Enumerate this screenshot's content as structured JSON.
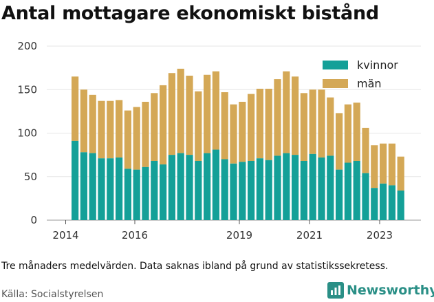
{
  "title": "Antal mottagare ekonomiskt bistånd",
  "note": "Tre månaders medelvärden. Data saknas ibland på grund av statistikssekretess.",
  "source": "Källa: Socialstyrelsen",
  "brand": {
    "name": "Newsworthy",
    "icon": "bar-chart-icon",
    "color": "#2a8f86"
  },
  "chart_data": {
    "type": "bar",
    "stacked": true,
    "ylim": [
      0,
      200
    ],
    "yticks": [
      0,
      50,
      100,
      150,
      200
    ],
    "xticks": [
      "2014",
      "2016",
      "2019",
      "2021",
      "2023"
    ],
    "grid": true,
    "legend_position": "top-right",
    "series": [
      {
        "name": "kvinnor",
        "color": "#14a098",
        "values": [
          91,
          78,
          77,
          71,
          71,
          72,
          59,
          58,
          61,
          68,
          64,
          75,
          77,
          75,
          68,
          77,
          81,
          70,
          65,
          67,
          68,
          71,
          69,
          74,
          77,
          75,
          68,
          76,
          72,
          74,
          58,
          66,
          68,
          54,
          37,
          42,
          40,
          34
        ]
      },
      {
        "name": "män",
        "color": "#d4a856",
        "values": [
          74,
          72,
          67,
          66,
          66,
          66,
          67,
          72,
          75,
          78,
          91,
          94,
          97,
          91,
          80,
          90,
          90,
          77,
          68,
          69,
          77,
          80,
          82,
          88,
          94,
          90,
          78,
          74,
          78,
          67,
          65,
          67,
          67,
          52,
          49,
          46,
          48,
          39
        ]
      }
    ]
  }
}
